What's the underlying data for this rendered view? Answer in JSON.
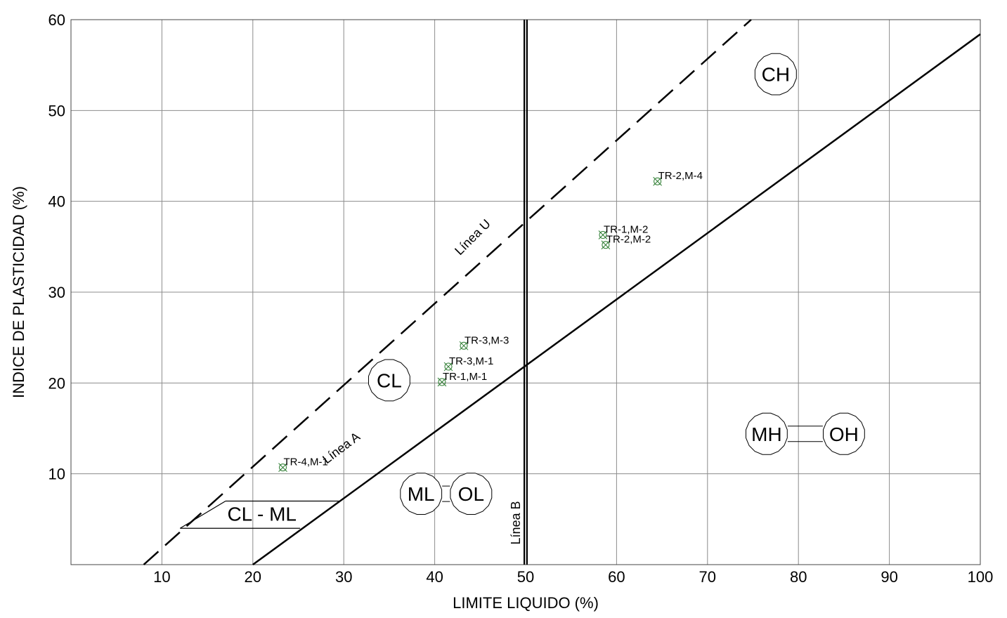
{
  "chart_data": {
    "type": "scatter",
    "title": "",
    "xlabel": "LIMITE LIQUIDO (%)",
    "ylabel": "INDICE DE PLASTICIDAD (%)",
    "xlim": [
      0,
      100
    ],
    "ylim": [
      0,
      60
    ],
    "x_ticks": [
      10,
      20,
      30,
      40,
      50,
      60,
      70,
      80,
      90,
      100
    ],
    "y_ticks": [
      10,
      20,
      30,
      40,
      50,
      60
    ],
    "grid": true,
    "points": [
      {
        "label": "TR-2,M-4",
        "x": 64.5,
        "y": 42.2
      },
      {
        "label": "TR-1,M-2",
        "x": 58.5,
        "y": 36.3
      },
      {
        "label": "TR-2,M-2",
        "x": 58.8,
        "y": 35.2
      },
      {
        "label": "TR-3,M-3",
        "x": 43.2,
        "y": 24.1
      },
      {
        "label": "TR-3,M-1",
        "x": 41.5,
        "y": 21.8
      },
      {
        "label": "TR-1,M-1",
        "x": 40.8,
        "y": 20.1
      },
      {
        "label": "TR-4,M-1",
        "x": 23.3,
        "y": 10.7
      }
    ],
    "reference_lines": [
      {
        "name": "Línea A",
        "style": "solid",
        "from": [
          20,
          0
        ],
        "to": [
          100,
          58.4
        ]
      },
      {
        "name": "Línea U",
        "style": "dashed",
        "from": [
          8,
          0
        ],
        "to": [
          74.8,
          60
        ]
      },
      {
        "name": "Línea B",
        "style": "double-vertical",
        "from": [
          50,
          0
        ],
        "to": [
          50,
          60
        ]
      }
    ],
    "zones": [
      {
        "text": "CH",
        "x": 77.5,
        "y": 54
      },
      {
        "text": "CL",
        "x": 35,
        "y": 20.3
      },
      {
        "text": "ML",
        "x": 38.5,
        "y": 7.8
      },
      {
        "text": "OL",
        "x": 44,
        "y": 7.8
      },
      {
        "text": "MH",
        "x": 76.5,
        "y": 14.4
      },
      {
        "text": "OH",
        "x": 85,
        "y": 14.4
      },
      {
        "text": "CL - ML",
        "x": 21,
        "y": 5.6
      }
    ],
    "point_color": "#2e7d32"
  }
}
